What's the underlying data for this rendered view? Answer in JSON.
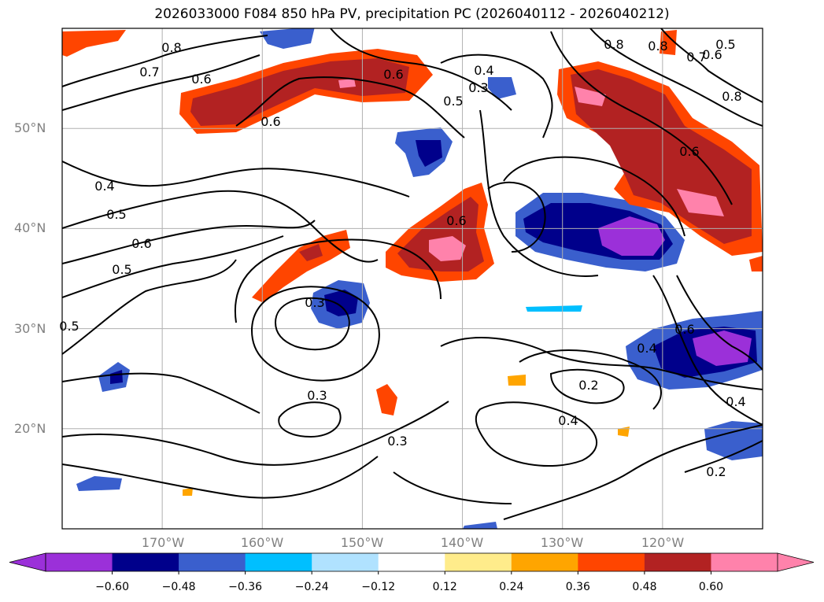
{
  "chart_data": {
    "type": "contour map",
    "title": "2026033000 F084 850 hPa PV, precipitation PC (2026040112 - 2026040212)",
    "longitude_ticks": [
      "170°W",
      "160°W",
      "150°W",
      "140°W",
      "130°W",
      "120°W"
    ],
    "latitude_ticks": [
      "50°N",
      "40°N",
      "30°N",
      "20°N"
    ],
    "lon_range": [
      -180,
      -110
    ],
    "lat_range": [
      10,
      60
    ],
    "grid": true,
    "pv_contour_labels": [
      "0.8",
      "0.7",
      "0.6",
      "0.6",
      "0.6",
      "0.5",
      "0.3",
      "0.4",
      "0.4",
      "0.5",
      "0.6",
      "0.5",
      "0.5",
      "0.3",
      "0.3",
      "0.3",
      "0.2",
      "0.4",
      "0.4",
      "0.2",
      "0.8",
      "0.8",
      "0.6",
      "0.5",
      "0.7",
      "0.8",
      "0.6",
      "0.6",
      "0.4",
      "0.6"
    ],
    "colorbar": {
      "ticks": [
        "−0.60",
        "−0.48",
        "−0.36",
        "−0.24",
        "−0.12",
        "0.12",
        "0.24",
        "0.36",
        "0.48",
        "0.60"
      ],
      "colors": [
        "#9b30d9",
        "#00008b",
        "#3a5fcd",
        "#00bfff",
        "#b0e2ff",
        "#ffffff",
        "#ffec8b",
        "#ffa500",
        "#ff4500",
        "#b22222",
        "#ff82ab"
      ],
      "extend": "both"
    }
  }
}
